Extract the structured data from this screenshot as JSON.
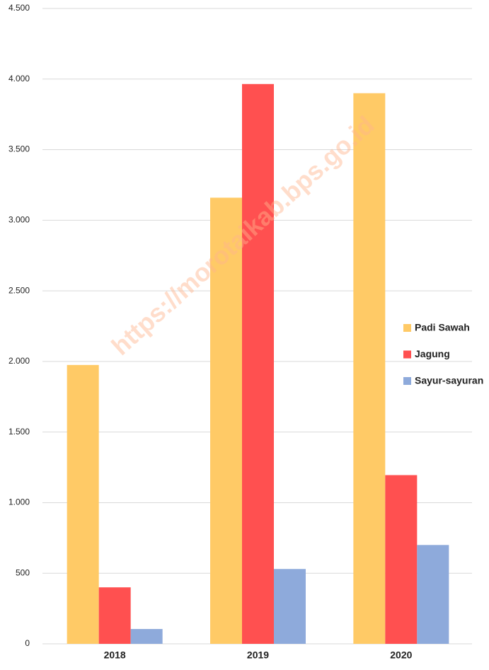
{
  "chart_data": {
    "type": "bar",
    "categories": [
      "2018",
      "2019",
      "2020"
    ],
    "series": [
      {
        "name": "Padi Sawah",
        "color": "#ffca66",
        "values": [
          1975,
          3160,
          3900
        ]
      },
      {
        "name": "Jagung",
        "color": "#ff5050",
        "values": [
          400,
          3965,
          1195
        ]
      },
      {
        "name": "Sayur-sayuran",
        "color": "#8eaadb",
        "values": [
          105,
          530,
          700
        ]
      }
    ],
    "ylim": [
      0,
      4500
    ],
    "yticks": [
      0,
      500,
      {
        "value": 1000,
        "label": "1.000"
      },
      {
        "value": 1500,
        "label": "1.500"
      },
      {
        "value": 2000,
        "label": "2.000"
      },
      {
        "value": 2500,
        "label": "2.500"
      },
      {
        "value": 3000,
        "label": "3.000"
      },
      {
        "value": 3500,
        "label": "3.500"
      },
      {
        "value": 4000,
        "label": "4.000"
      },
      {
        "value": 4500,
        "label": "4.500"
      }
    ],
    "grid": true,
    "legend": "right",
    "annotations": [
      "https://morotaikab.bps.go.id"
    ]
  }
}
